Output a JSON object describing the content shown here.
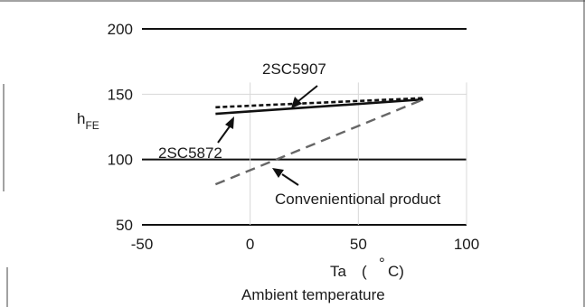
{
  "chart_data": {
    "type": "line",
    "xlabel_symbol": "Ta",
    "xlabel_unit_open": "(",
    "xlabel_unit_deg": "°",
    "xlabel_unit_c": "C)",
    "xlabel": "Ambient temperature",
    "ylabel_main": "h",
    "ylabel_sub": "FE",
    "xlim": [
      -50,
      100
    ],
    "ylim": [
      50,
      200
    ],
    "x_ticks": [
      -50,
      0,
      50,
      100
    ],
    "y_ticks": [
      50,
      100,
      150,
      200
    ],
    "x_tick_labels": [
      "-50",
      "0",
      "50",
      "100"
    ],
    "y_tick_labels": [
      "50",
      "100",
      "150",
      "200"
    ],
    "grid": true,
    "series": [
      {
        "name": "2SC5907",
        "style": "dotted",
        "color": "#111111",
        "x": [
          -16,
          80
        ],
        "y": [
          140,
          147
        ]
      },
      {
        "name": "2SC5872",
        "style": "solid",
        "color": "#111111",
        "x": [
          -16,
          80
        ],
        "y": [
          135,
          146
        ]
      },
      {
        "name": "Convenientional product",
        "style": "dashed",
        "color": "#666666",
        "x": [
          -16,
          80
        ],
        "y": [
          81,
          146
        ]
      }
    ]
  }
}
